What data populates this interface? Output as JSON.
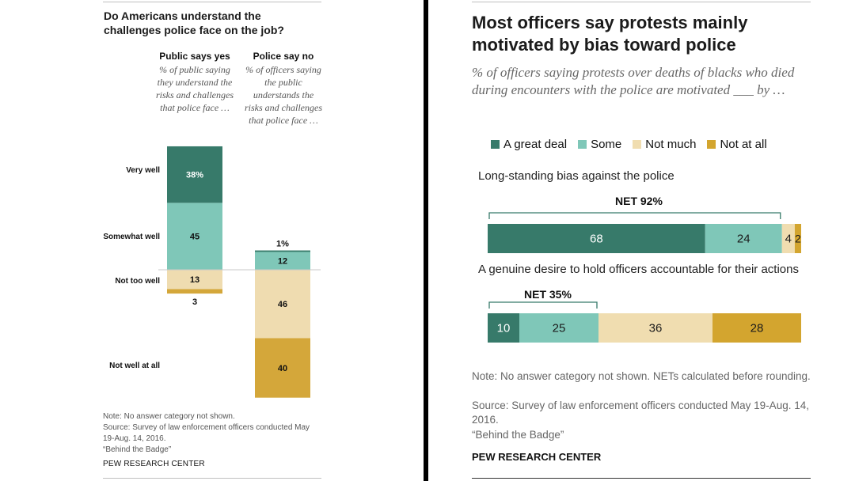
{
  "colors": {
    "great_deal": "#377a6a",
    "some": "#7fc7b8",
    "not_much": "#f0ddb0",
    "not_at_all": "#d3a52f",
    "left_not_too_well": "#efdcb0",
    "left_not_well_at_all": "#d4a73a"
  },
  "chart_data": [
    {
      "type": "bar",
      "title": "Do Americans understand the challenges police face on the job?",
      "categories": [
        "Public says yes",
        "Police say no"
      ],
      "category_subtitles": [
        "% of public saying they understand the risks and challenges that police face …",
        "% of officers saying the public understands the risks and challenges that police face …"
      ],
      "series": [
        {
          "name": "Very well",
          "values": [
            38,
            1
          ]
        },
        {
          "name": "Somewhat well",
          "values": [
            45,
            12
          ]
        },
        {
          "name": "Not too well",
          "values": [
            13,
            46
          ]
        },
        {
          "name": "Not well at all",
          "values": [
            3,
            40
          ]
        }
      ],
      "value_labels": [
        [
          "38%",
          "45",
          "13",
          "3"
        ],
        [
          "1%",
          "12",
          "46",
          "40"
        ]
      ],
      "note": "Note: No answer category not shown.",
      "source": "Source: Survey of law enforcement officers conducted May 19-Aug. 14, 2016.",
      "report": "“Behind the Badge”",
      "brand": "PEW RESEARCH CENTER"
    },
    {
      "type": "bar",
      "orientation": "horizontal-stacked",
      "title": "Most officers say protests mainly motivated by bias toward police",
      "subtitle": "% of officers saying protests over deaths of blacks who died during encounters with the police are motivated ___ by …",
      "legend": [
        "A great deal",
        "Some",
        "Not much",
        "Not at all"
      ],
      "legend_placement": "top",
      "categories": [
        "Long-standing bias against the police",
        "A genuine desire to hold officers accountable for their actions"
      ],
      "series": [
        {
          "name": "A great deal",
          "values": [
            68,
            10
          ]
        },
        {
          "name": "Some",
          "values": [
            24,
            25
          ]
        },
        {
          "name": "Not much",
          "values": [
            4,
            36
          ]
        },
        {
          "name": "Not at all",
          "values": [
            2,
            28
          ]
        }
      ],
      "nets": [
        "NET 92%",
        "NET 35%"
      ],
      "note": "Note: No answer category not shown. NETs calculated before rounding.",
      "source": "Source: Survey of law enforcement officers conducted May 19-Aug. 14, 2016.",
      "report": "“Behind the Badge”",
      "brand": "PEW RESEARCH CENTER"
    }
  ]
}
